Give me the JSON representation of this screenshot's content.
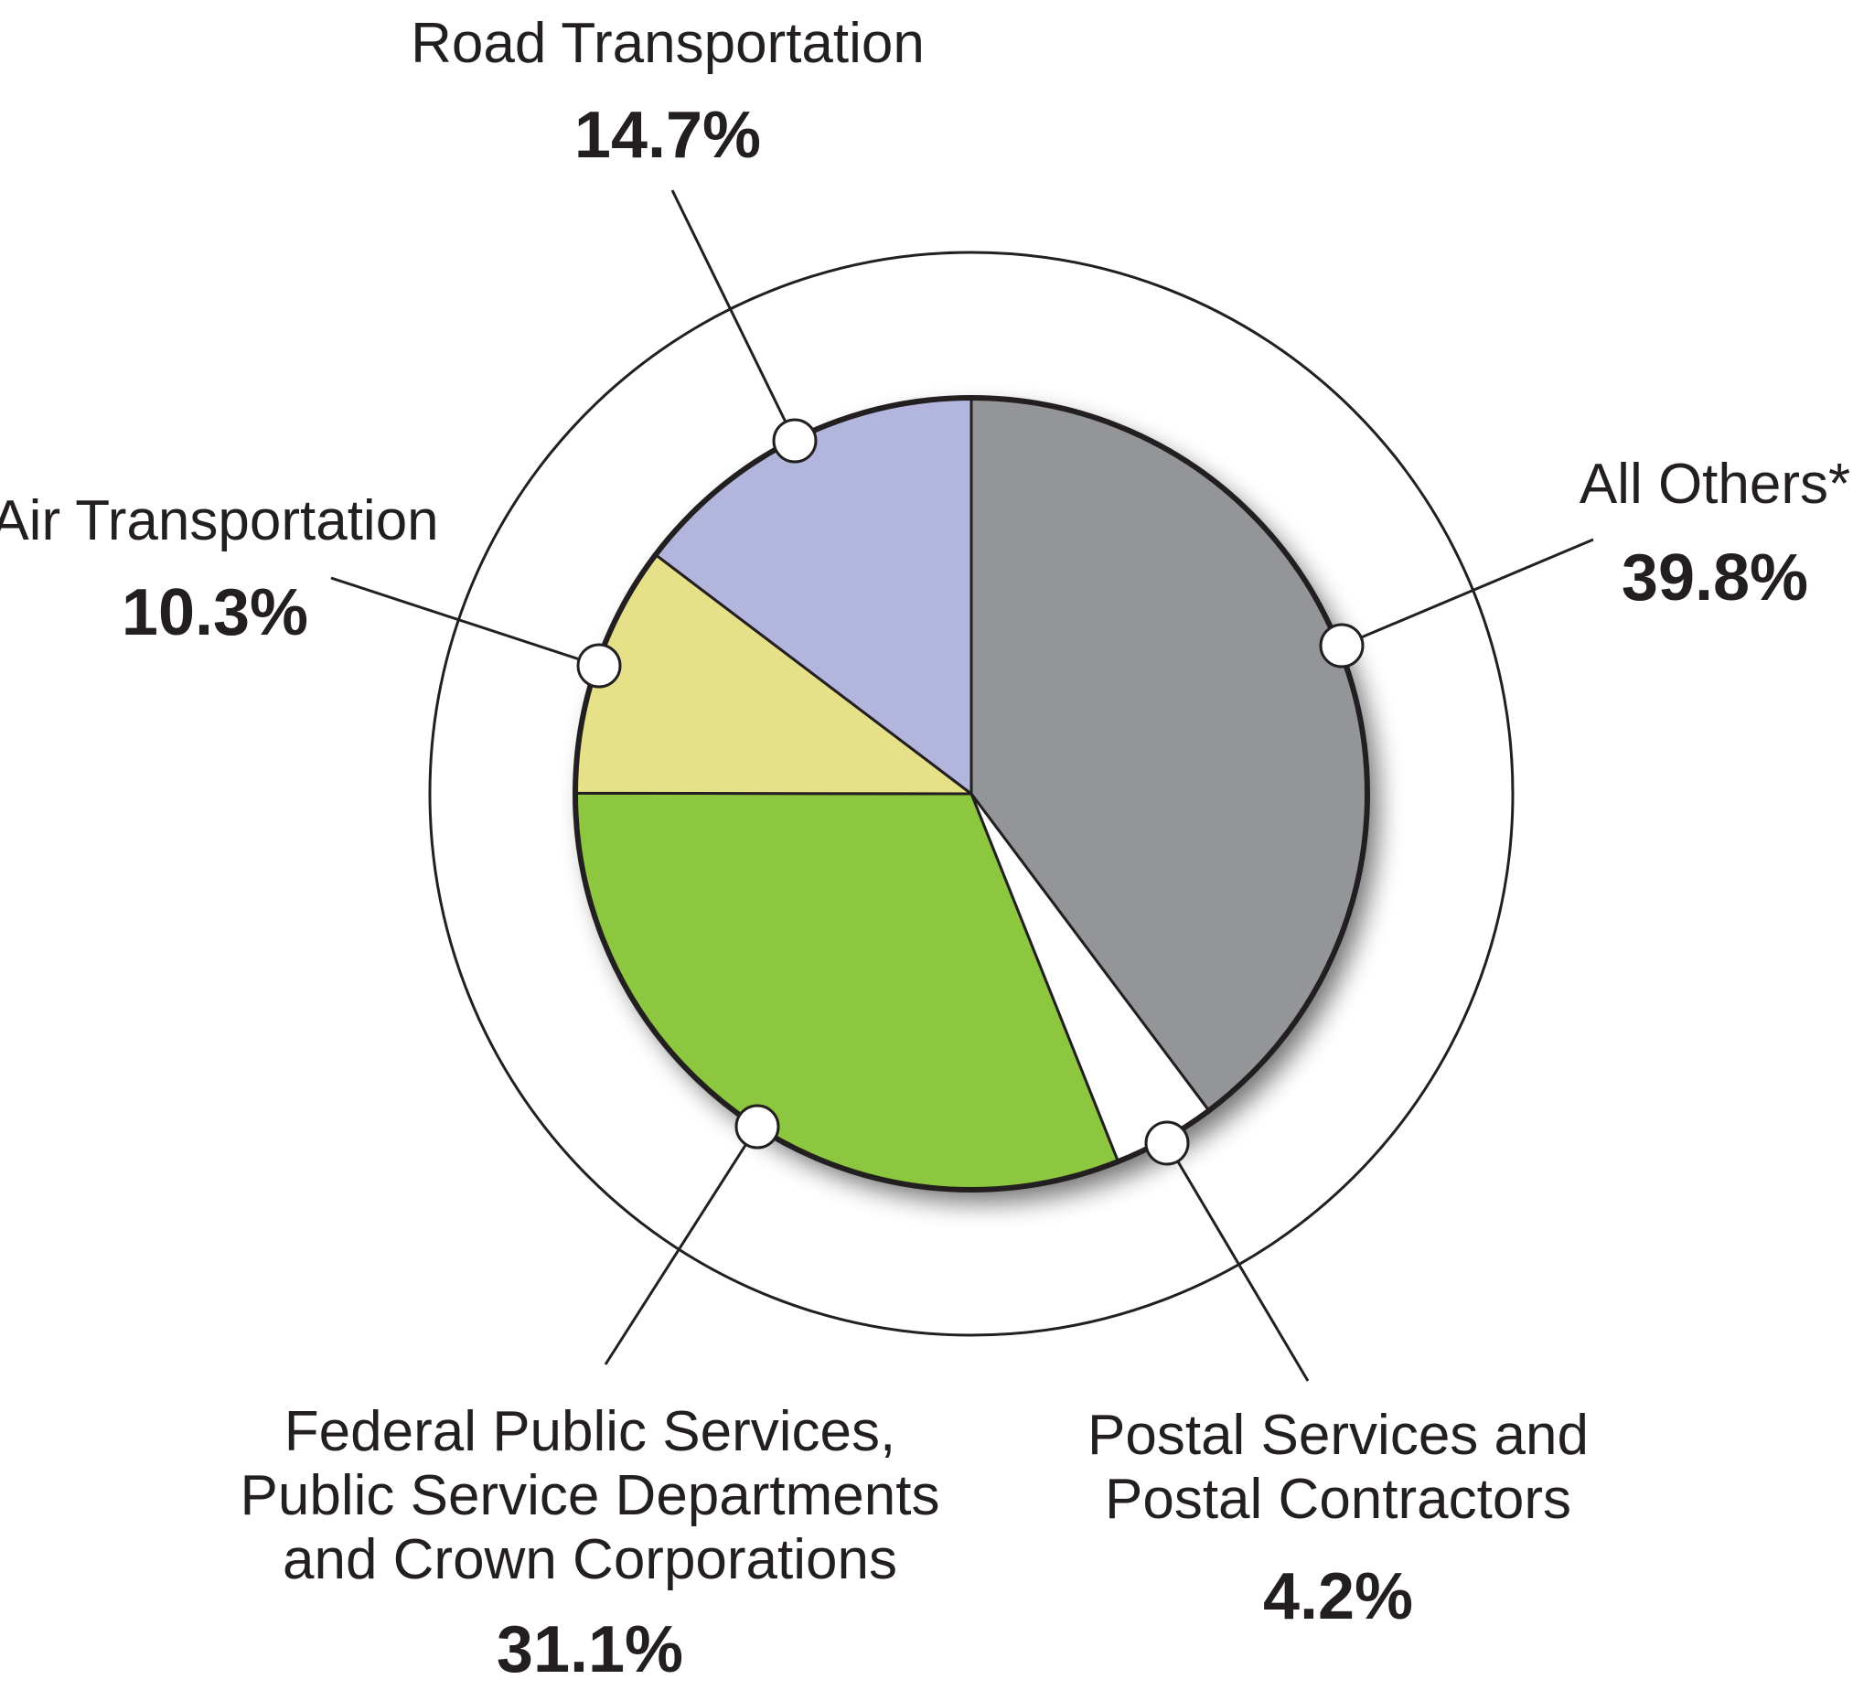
{
  "chart_data": {
    "type": "pie",
    "title": "",
    "legend": "none",
    "slices": [
      {
        "label": "All Others*",
        "value": 39.8,
        "value_label": "39.8%",
        "color": "#939598"
      },
      {
        "label": "Postal Services and Postal Contractors",
        "value": 4.2,
        "value_label": "4.2%",
        "color": "#ffffff"
      },
      {
        "label": "Federal Public Services, Public Service Departments and Crown Corporations",
        "value": 31.1,
        "value_label": "31.1%",
        "color": "#8dc63f"
      },
      {
        "label": "Air Transportation",
        "value": 10.3,
        "value_label": "10.3%",
        "color": "#e6e088"
      },
      {
        "label": "Road Transportation",
        "value": 14.7,
        "value_label": "14.7%",
        "color": "#b3b6dc"
      }
    ],
    "label_lines": {
      "all_others": [
        "All Others*"
      ],
      "postal": [
        "Postal Services and",
        "Postal Contractors"
      ],
      "federal": [
        "Federal Public Services,",
        "Public Service Departments",
        "and Crown Corporations"
      ],
      "air": [
        "Air Transportation"
      ],
      "road": [
        "Road Transportation"
      ]
    }
  }
}
